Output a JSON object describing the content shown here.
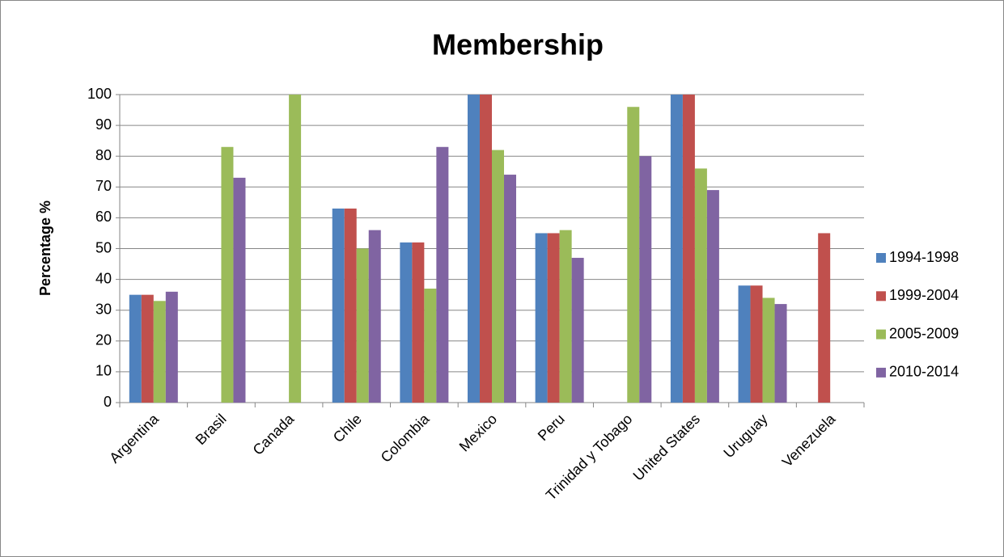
{
  "chart_data": {
    "type": "bar",
    "title": "Membership",
    "y_label": "Percentage %",
    "categories": [
      "Argentina",
      "Brasil",
      "Canada",
      "Chile",
      "Colombia",
      "Mexico",
      "Peru",
      "Trinidad y Tobago",
      "United States",
      "Uruguay",
      "Venezuela"
    ],
    "series": [
      {
        "name": "1994-1998",
        "color": "#4f81bd",
        "values": [
          35,
          null,
          null,
          63,
          52,
          100,
          55,
          null,
          100,
          38,
          null
        ]
      },
      {
        "name": "1999-2004",
        "color": "#c0504d",
        "values": [
          35,
          null,
          null,
          63,
          52,
          100,
          55,
          null,
          100,
          38,
          55
        ]
      },
      {
        "name": "2005-2009",
        "color": "#9bbb59",
        "values": [
          33,
          83,
          100,
          50,
          37,
          82,
          56,
          96,
          76,
          34,
          null
        ]
      },
      {
        "name": "2010-2014",
        "color": "#8064a2",
        "values": [
          36,
          73,
          null,
          56,
          83,
          74,
          47,
          80,
          69,
          32,
          null
        ]
      }
    ],
    "ylim": [
      0,
      100
    ],
    "yticks": [
      0,
      10,
      20,
      30,
      40,
      50,
      60,
      70,
      80,
      90,
      100
    ],
    "grid": true,
    "legend": "right"
  }
}
